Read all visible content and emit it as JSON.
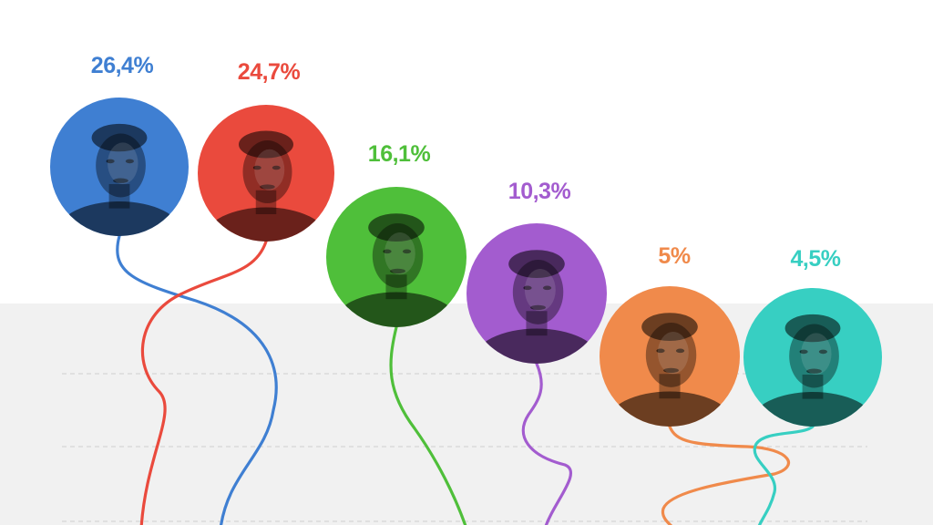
{
  "chart_data": {
    "type": "line",
    "title": "",
    "xlabel": "",
    "ylabel": "",
    "grid": true,
    "legend": "none",
    "series": [
      {
        "value": 26.4,
        "label": "26,4%",
        "color": "#3f7fd2"
      },
      {
        "value": 24.7,
        "label": "24,7%",
        "color": "#ea4a3d"
      },
      {
        "value": 16.1,
        "label": "16,1%",
        "color": "#4fbf3a"
      },
      {
        "value": 10.3,
        "label": "10,3%",
        "color": "#a35ccf"
      },
      {
        "value": 5.0,
        "label": "5%",
        "color": "#f08a4b"
      },
      {
        "value": 4.5,
        "label": "4,5%",
        "color": "#37cfc2"
      }
    ]
  },
  "colors": {
    "band": "#f1f1f1",
    "grid": "#d6d6d6"
  }
}
